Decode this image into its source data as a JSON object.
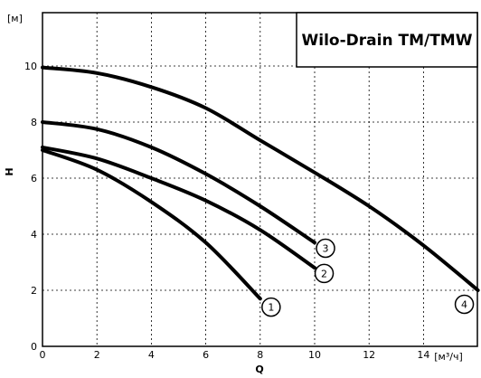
{
  "chart_data": {
    "type": "line",
    "title": "Wilo-Drain TM/TMW",
    "xlabel": "Q",
    "ylabel": "H",
    "x_unit": "[м³/ч]",
    "y_unit": "[м]",
    "xlim": [
      0,
      16
    ],
    "ylim": [
      0,
      11
    ],
    "x_ticks": [
      "0",
      "2",
      "4",
      "6",
      "8",
      "10",
      "12",
      "14"
    ],
    "y_ticks": [
      "0",
      "2",
      "4",
      "6",
      "8",
      "10"
    ],
    "grid": true,
    "series": [
      {
        "label": "1",
        "points": [
          [
            0,
            7.0
          ],
          [
            2,
            6.3
          ],
          [
            4,
            5.15
          ],
          [
            6,
            3.7
          ],
          [
            8,
            1.7
          ]
        ]
      },
      {
        "label": "2",
        "points": [
          [
            0,
            7.1
          ],
          [
            2,
            6.7
          ],
          [
            4,
            6.0
          ],
          [
            6,
            5.2
          ],
          [
            8,
            4.15
          ],
          [
            10,
            2.8
          ]
        ]
      },
      {
        "label": "3",
        "points": [
          [
            0,
            8.0
          ],
          [
            2,
            7.75
          ],
          [
            4,
            7.1
          ],
          [
            6,
            6.15
          ],
          [
            8,
            5.0
          ],
          [
            10,
            3.7
          ]
        ]
      },
      {
        "label": "4",
        "points": [
          [
            0,
            9.95
          ],
          [
            2,
            9.75
          ],
          [
            4,
            9.25
          ],
          [
            6,
            8.5
          ],
          [
            8,
            7.35
          ],
          [
            10,
            6.2
          ],
          [
            12,
            5.0
          ],
          [
            14,
            3.6
          ],
          [
            16,
            2.0
          ]
        ]
      }
    ],
    "markers": [
      {
        "label": "1",
        "x": 8.4,
        "y": 1.4
      },
      {
        "label": "2",
        "x": 10.35,
        "y": 2.6
      },
      {
        "label": "3",
        "x": 10.4,
        "y": 3.5
      },
      {
        "label": "4",
        "x": 15.5,
        "y": 1.5
      }
    ]
  }
}
